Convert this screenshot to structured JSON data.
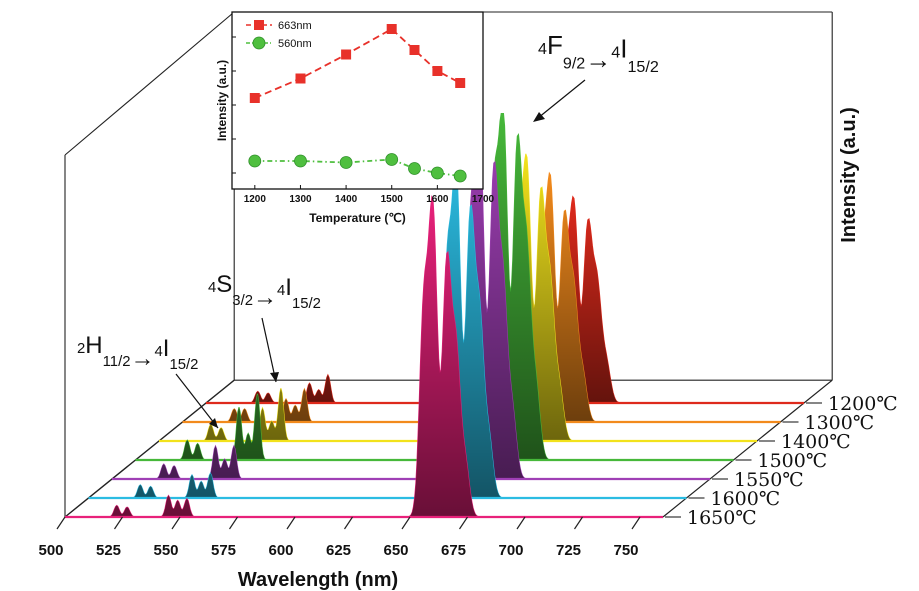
{
  "chart_data": [
    {
      "type": "line",
      "subtype": "waterfall-3d-spectra",
      "xlabel": "Wavelength (nm)",
      "zlabel": "Intensity (a.u.)",
      "x_ticks": [
        500,
        525,
        550,
        575,
        600,
        625,
        650,
        675,
        700,
        725,
        750
      ],
      "xlim": [
        500,
        760
      ],
      "series": [
        {
          "name": "1650℃",
          "color": "#e8217a",
          "peaks": [
            {
              "x": 522.5,
              "y": 0.035
            },
            {
              "x": 527,
              "y": 0.03
            },
            {
              "x": 545,
              "y": 0.065
            },
            {
              "x": 549,
              "y": 0.05
            },
            {
              "x": 553,
              "y": 0.055
            },
            {
              "x": 656,
              "y": 0.62
            },
            {
              "x": 660,
              "y": 0.9
            },
            {
              "x": 666,
              "y": 0.75
            },
            {
              "x": 670,
              "y": 0.48
            },
            {
              "x": 674,
              "y": 0.16
            }
          ]
        },
        {
          "name": "1600℃",
          "color": "#2bbce2",
          "peaks": [
            {
              "x": 522.5,
              "y": 0.04
            },
            {
              "x": 527,
              "y": 0.035
            },
            {
              "x": 545,
              "y": 0.07
            },
            {
              "x": 549,
              "y": 0.05
            },
            {
              "x": 553,
              "y": 0.075
            },
            {
              "x": 656,
              "y": 0.68
            },
            {
              "x": 660,
              "y": 0.94
            },
            {
              "x": 666,
              "y": 0.83
            },
            {
              "x": 670,
              "y": 0.52
            },
            {
              "x": 674,
              "y": 0.18
            }
          ]
        },
        {
          "name": "1550℃",
          "color": "#9f3fb5",
          "peaks": [
            {
              "x": 522.5,
              "y": 0.045
            },
            {
              "x": 527,
              "y": 0.04
            },
            {
              "x": 545,
              "y": 0.1
            },
            {
              "x": 549,
              "y": 0.06
            },
            {
              "x": 553,
              "y": 0.1
            },
            {
              "x": 656,
              "y": 0.75
            },
            {
              "x": 660,
              "y": 1.0
            },
            {
              "x": 666,
              "y": 0.9
            },
            {
              "x": 670,
              "y": 0.56
            },
            {
              "x": 674,
              "y": 0.2
            }
          ]
        },
        {
          "name": "1500℃",
          "color": "#46b83a",
          "peaks": [
            {
              "x": 522.5,
              "y": 0.06
            },
            {
              "x": 527,
              "y": 0.05
            },
            {
              "x": 545,
              "y": 0.16
            },
            {
              "x": 549,
              "y": 0.08
            },
            {
              "x": 553,
              "y": 0.2
            },
            {
              "x": 656,
              "y": 0.78
            },
            {
              "x": 660,
              "y": 1.0
            },
            {
              "x": 666,
              "y": 0.92
            },
            {
              "x": 670,
              "y": 0.6
            },
            {
              "x": 674,
              "y": 0.22
            }
          ]
        },
        {
          "name": "1400℃",
          "color": "#f2e21c",
          "peaks": [
            {
              "x": 522.5,
              "y": 0.05
            },
            {
              "x": 527,
              "y": 0.04
            },
            {
              "x": 545,
              "y": 0.1
            },
            {
              "x": 549,
              "y": 0.06
            },
            {
              "x": 553,
              "y": 0.16
            },
            {
              "x": 656,
              "y": 0.6
            },
            {
              "x": 660,
              "y": 0.8
            },
            {
              "x": 666,
              "y": 0.72
            },
            {
              "x": 670,
              "y": 0.45
            },
            {
              "x": 674,
              "y": 0.16
            }
          ]
        },
        {
          "name": "1300℃",
          "color": "#f28a1c",
          "peaks": [
            {
              "x": 522.5,
              "y": 0.04
            },
            {
              "x": 527,
              "y": 0.04
            },
            {
              "x": 545,
              "y": 0.07
            },
            {
              "x": 549,
              "y": 0.05
            },
            {
              "x": 553,
              "y": 0.1
            },
            {
              "x": 656,
              "y": 0.48
            },
            {
              "x": 660,
              "y": 0.7
            },
            {
              "x": 666,
              "y": 0.6
            },
            {
              "x": 670,
              "y": 0.38
            },
            {
              "x": 674,
              "y": 0.14
            }
          ]
        },
        {
          "name": "1200℃",
          "color": "#de2a1c",
          "peaks": [
            {
              "x": 522.5,
              "y": 0.035
            },
            {
              "x": 527,
              "y": 0.03
            },
            {
              "x": 545,
              "y": 0.06
            },
            {
              "x": 549,
              "y": 0.04
            },
            {
              "x": 553,
              "y": 0.085
            },
            {
              "x": 656,
              "y": 0.4
            },
            {
              "x": 660,
              "y": 0.58
            },
            {
              "x": 666,
              "y": 0.52
            },
            {
              "x": 670,
              "y": 0.34
            },
            {
              "x": 674,
              "y": 0.12
            }
          ]
        }
      ],
      "annotations": [
        {
          "prefix": "2",
          "term": "H",
          "sub": "11/2",
          "prefix2": "4",
          "term2": "I",
          "sub2": "15/2"
        },
        {
          "prefix": "4",
          "term": "S",
          "sub": "3/2",
          "prefix2": "4",
          "term2": "I",
          "sub2": "15/2"
        },
        {
          "prefix": "4",
          "term": "F",
          "sub": "9/2",
          "prefix2": "4",
          "term2": "I",
          "sub2": "15/2"
        }
      ]
    },
    {
      "type": "line",
      "subtype": "inset",
      "xlabel": "Temperature (℃)",
      "ylabel": "Intensity (a.u.)",
      "x_ticks": [
        1200,
        1300,
        1400,
        1500,
        1600,
        1700
      ],
      "xlim": [
        1150,
        1700
      ],
      "ylim": [
        0,
        1
      ],
      "legend": "top-left",
      "series": [
        {
          "name": "663nm",
          "color": "#e8312a",
          "marker": "square",
          "x": [
            1200,
            1300,
            1400,
            1500,
            1550,
            1600,
            1650
          ],
          "y": [
            0.54,
            0.67,
            0.83,
            1.0,
            0.86,
            0.72,
            0.64
          ]
        },
        {
          "name": "560nm",
          "color": "#4fbf3f",
          "marker": "circle",
          "x": [
            1200,
            1300,
            1400,
            1500,
            1550,
            1600,
            1650
          ],
          "y": [
            0.12,
            0.12,
            0.11,
            0.13,
            0.07,
            0.04,
            0.02
          ]
        }
      ]
    }
  ]
}
